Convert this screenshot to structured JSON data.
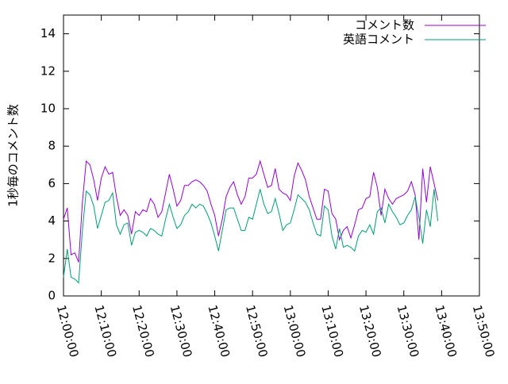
{
  "chart_data": {
    "type": "line",
    "ylabel": "1秒毎のコメント数",
    "x": [
      "12:00:00",
      "12:01:00",
      "12:02:00",
      "12:03:00",
      "12:04:00",
      "12:05:00",
      "12:06:00",
      "12:07:00",
      "12:08:00",
      "12:09:00",
      "12:10:00",
      "12:11:00",
      "12:12:00",
      "12:13:00",
      "12:14:00",
      "12:15:00",
      "12:16:00",
      "12:17:00",
      "12:18:00",
      "12:19:00",
      "12:20:00",
      "12:21:00",
      "12:22:00",
      "12:23:00",
      "12:24:00",
      "12:25:00",
      "12:26:00",
      "12:27:00",
      "12:28:00",
      "12:29:00",
      "12:30:00",
      "12:31:00",
      "12:32:00",
      "12:33:00",
      "12:34:00",
      "12:35:00",
      "12:36:00",
      "12:37:00",
      "12:38:00",
      "12:39:00",
      "12:40:00",
      "12:41:00",
      "12:42:00",
      "12:43:00",
      "12:44:00",
      "12:45:00",
      "12:46:00",
      "12:47:00",
      "12:48:00",
      "12:49:00",
      "12:50:00",
      "12:51:00",
      "12:52:00",
      "12:53:00",
      "12:54:00",
      "12:55:00",
      "12:56:00",
      "12:57:00",
      "12:58:00",
      "12:59:00",
      "13:00:00",
      "13:01:00",
      "13:02:00",
      "13:03:00",
      "13:04:00",
      "13:05:00",
      "13:06:00",
      "13:07:00",
      "13:08:00",
      "13:09:00",
      "13:10:00",
      "13:11:00",
      "13:12:00",
      "13:13:00",
      "13:14:00",
      "13:15:00",
      "13:16:00",
      "13:17:00",
      "13:18:00",
      "13:19:00",
      "13:20:00",
      "13:21:00",
      "13:22:00",
      "13:23:00",
      "13:24:00",
      "13:25:00",
      "13:26:00",
      "13:27:00",
      "13:28:00",
      "13:29:00",
      "13:30:00",
      "13:31:00",
      "13:32:00",
      "13:33:00",
      "13:34:00",
      "13:35:00",
      "13:36:00",
      "13:37:00",
      "13:38:00",
      "13:39:00"
    ],
    "series": [
      {
        "name": "コメント数",
        "color": "#9400d3",
        "values": [
          4.1,
          4.7,
          2.2,
          2.3,
          1.8,
          5.0,
          7.2,
          7.0,
          6.2,
          5.1,
          6.3,
          6.9,
          6.5,
          6.6,
          5.3,
          4.3,
          4.6,
          4.3,
          3.3,
          4.5,
          4.3,
          4.6,
          4.5,
          5.2,
          4.9,
          4.2,
          4.5,
          5.5,
          6.5,
          5.7,
          4.8,
          5.1,
          5.9,
          5.9,
          6.1,
          6.2,
          6.1,
          5.9,
          5.6,
          4.9,
          4.3,
          3.2,
          4.1,
          5.3,
          5.8,
          6.1,
          5.4,
          4.9,
          5.3,
          6.3,
          6.3,
          6.5,
          7.2,
          6.5,
          5.8,
          5.9,
          6.8,
          5.7,
          5.5,
          5.4,
          5.1,
          6.4,
          7.1,
          6.7,
          6.2,
          5.3,
          4.7,
          4.1,
          4.1,
          5.7,
          5.6,
          4.4,
          4.1,
          3.0,
          3.5,
          3.7,
          3.1,
          3.8,
          4.6,
          4.7,
          5.2,
          5.3,
          6.6,
          5.8,
          4.3,
          5.7,
          5.2,
          4.9,
          5.2,
          5.3,
          5.4,
          5.6,
          6.1,
          5.4,
          3.0,
          6.8,
          5.0,
          6.9,
          6.0,
          5.1
        ]
      },
      {
        "name": "英語コメント",
        "color": "#009e73",
        "values": [
          1.0,
          2.5,
          1.0,
          0.9,
          0.7,
          3.5,
          5.6,
          5.4,
          4.8,
          3.6,
          4.3,
          5.0,
          5.1,
          5.5,
          3.8,
          3.3,
          3.8,
          3.9,
          2.7,
          3.4,
          3.5,
          3.4,
          3.2,
          3.6,
          3.5,
          3.3,
          3.2,
          4.1,
          4.9,
          4.2,
          3.6,
          3.8,
          4.3,
          4.5,
          4.9,
          4.7,
          4.9,
          4.8,
          4.4,
          3.9,
          3.2,
          2.4,
          3.5,
          4.6,
          4.7,
          4.7,
          4.1,
          3.5,
          3.5,
          4.2,
          4.1,
          4.9,
          5.7,
          4.9,
          4.4,
          4.5,
          5.2,
          4.4,
          3.5,
          3.8,
          3.9,
          4.6,
          5.4,
          5.2,
          5.0,
          4.6,
          3.9,
          3.3,
          3.2,
          4.8,
          4.6,
          3.2,
          2.5,
          3.6,
          2.6,
          2.7,
          2.6,
          2.4,
          3.2,
          3.5,
          3.4,
          3.8,
          3.3,
          4.5,
          4.7,
          3.9,
          4.9,
          4.5,
          4.2,
          3.8,
          3.9,
          4.3,
          4.6,
          5.3,
          4.2,
          2.8,
          4.6,
          3.7,
          5.7,
          4.0
        ]
      }
    ],
    "xlim": [
      "12:00:00",
      "13:50:00"
    ],
    "xticks": [
      "12:00:00",
      "12:10:00",
      "12:20:00",
      "12:30:00",
      "12:40:00",
      "12:50:00",
      "13:00:00",
      "13:10:00",
      "13:20:00",
      "13:30:00",
      "13:40:00",
      "13:50:00"
    ],
    "ylim": [
      0,
      15
    ],
    "yticks": [
      0,
      2,
      4,
      6,
      8,
      10,
      12,
      14
    ],
    "legend": "top-right"
  }
}
